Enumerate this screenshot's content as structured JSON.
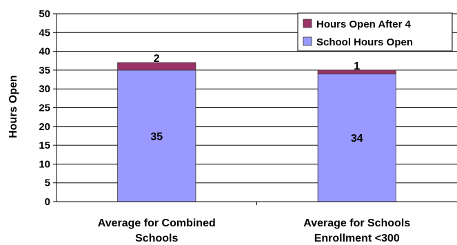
{
  "chart_data": {
    "type": "bar",
    "stacked": true,
    "categories": [
      [
        "Average for Combined",
        "Schools"
      ],
      [
        "Average for Schools",
        "Enrollment <300"
      ]
    ],
    "series": [
      {
        "name": "School Hours Open",
        "values": [
          35,
          34
        ],
        "color": "#9999ff"
      },
      {
        "name": "Hours Open After 4",
        "values": [
          2,
          1
        ],
        "color": "#993366"
      }
    ],
    "ylabel": "Hours Open",
    "xlabel": "",
    "ylim": [
      0,
      50
    ],
    "yticks": [
      0,
      5,
      10,
      15,
      20,
      25,
      30,
      35,
      40,
      45,
      50
    ],
    "grid": true,
    "legend_position": "top-right",
    "legend_order": [
      "Hours Open After 4",
      "School Hours Open"
    ]
  }
}
